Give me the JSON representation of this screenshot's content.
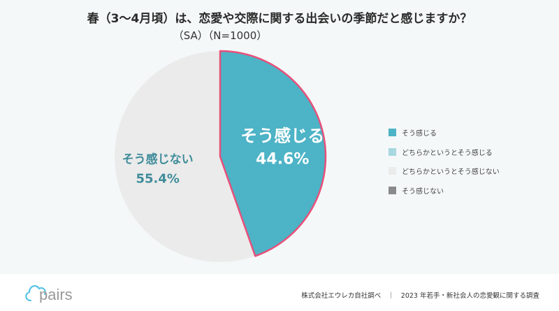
{
  "chart_data": {
    "type": "pie",
    "title": "春（3〜4月頃）は、恋愛や交際に関する出会いの季節だと感じますか？",
    "subtitle": "（SA）（N=1000）",
    "slices": [
      {
        "label": "そう感じる",
        "value": 44.6,
        "display": "44.6%",
        "color": "#4db3c6"
      },
      {
        "label": "どちらかというとそう感じる",
        "value": 0,
        "color": "#a8d8e2"
      },
      {
        "label": "どちらかというとそう感じない",
        "value": 55.4,
        "display": "55.4%",
        "color": "#ebebeb"
      },
      {
        "label": "そう感じない",
        "value": 0,
        "color": "#8a8a8a"
      }
    ],
    "legend_position": "right",
    "highlight_color": "#e8507a"
  },
  "footer": {
    "logo": "pairs",
    "credit": "株式会社エウレカ自社調べ　｜　2023 年若手・新社会人の恋愛観に関する調査"
  }
}
